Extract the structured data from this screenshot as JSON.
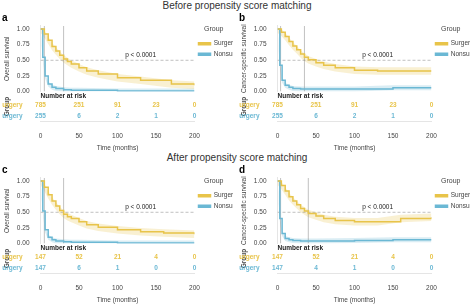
{
  "chart_data": [
    {
      "type": "step",
      "heading": "Before propensity score matching",
      "title": "a",
      "y_label": "Overall survival",
      "x_label": "Time (months)",
      "xlim": [
        0,
        200
      ],
      "xticks": [
        0,
        50,
        100,
        150,
        200
      ],
      "ylim": [
        0,
        1.05
      ],
      "yticks": [
        {
          "value": 0,
          "label": "0.00"
        },
        0.25,
        {
          "value": 0.5,
          "label": "0.50"
        },
        0.75,
        {
          "value": 1,
          "label": "1.00"
        }
      ],
      "grid": false,
      "legend": "upper right",
      "legend_title": "Group",
      "series": [
        {
          "name": "Surgery",
          "color": "#E8C44A",
          "x": [
            0,
            5,
            10,
            15,
            20,
            25,
            30,
            35,
            40,
            50,
            60,
            75,
            100,
            130,
            170,
            200
          ],
          "values": [
            1.0,
            0.92,
            0.82,
            0.72,
            0.65,
            0.58,
            0.52,
            0.48,
            0.44,
            0.38,
            0.33,
            0.28,
            0.22,
            0.18,
            0.12,
            0.1
          ],
          "lower": [
            0.94,
            0.86,
            0.76,
            0.66,
            0.59,
            0.52,
            0.46,
            0.42,
            0.38,
            0.32,
            0.27,
            0.22,
            0.16,
            0.12,
            0.06,
            0.04
          ],
          "upper": [
            1.0,
            0.98,
            0.88,
            0.78,
            0.71,
            0.64,
            0.58,
            0.54,
            0.5,
            0.44,
            0.39,
            0.34,
            0.28,
            0.24,
            0.18,
            0.16
          ]
        },
        {
          "name": "Nonsurgery",
          "color": "#6BB8D4",
          "x": [
            0,
            3,
            6,
            10,
            15,
            20,
            30,
            40,
            50,
            100,
            150,
            200
          ],
          "values": [
            1.0,
            0.55,
            0.25,
            0.12,
            0.07,
            0.05,
            0.03,
            0.02,
            0.02,
            0.01,
            0.01,
            0.01
          ],
          "lower": [
            0.96,
            0.51,
            0.21,
            0.08,
            0.03,
            0.01,
            0,
            0,
            0,
            0,
            0,
            0
          ],
          "upper": [
            1.0,
            0.59,
            0.29,
            0.16,
            0.11,
            0.09,
            0.07,
            0.06,
            0.06,
            0.05,
            0.05,
            0.05
          ]
        }
      ],
      "hlines": [
        0.5
      ],
      "vlines": [
        30,
        5
      ],
      "annotations": [
        "p < 0.0001"
      ],
      "risk_table": {
        "title": "Number at risk",
        "label": "Group",
        "x": [
          0,
          50,
          100,
          150,
          200
        ],
        "rows": [
          {
            "name": "Surgery",
            "values": [
              785,
              251,
              91,
              23,
              0
            ]
          },
          {
            "name": "Nonsurgery",
            "values": [
              255,
              6,
              2,
              1,
              0
            ]
          }
        ]
      }
    },
    {
      "type": "step",
      "title": "b",
      "y_label": "Cancer-specific survival",
      "x_label": "Time (months)",
      "xlim": [
        0,
        200
      ],
      "xticks": [
        0,
        50,
        100,
        150,
        200
      ],
      "ylim": [
        0,
        1.05
      ],
      "yticks": [
        {
          "value": 0,
          "label": "0.00"
        },
        0.25,
        {
          "value": 0.5,
          "label": "0.50"
        },
        0.75,
        {
          "value": 1,
          "label": "1.00"
        }
      ],
      "grid": false,
      "legend": "upper right",
      "legend_title": "Group",
      "series": [
        {
          "name": "Surgery",
          "color": "#E8C44A",
          "x": [
            0,
            5,
            10,
            15,
            20,
            25,
            30,
            35,
            40,
            50,
            60,
            75,
            100,
            130,
            160,
            200
          ],
          "values": [
            1.0,
            0.95,
            0.88,
            0.8,
            0.73,
            0.67,
            0.6,
            0.55,
            0.51,
            0.46,
            0.42,
            0.38,
            0.34,
            0.33,
            0.33,
            0.33
          ],
          "lower": [
            0.94,
            0.89,
            0.82,
            0.74,
            0.67,
            0.61,
            0.54,
            0.49,
            0.45,
            0.4,
            0.36,
            0.32,
            0.28,
            0.27,
            0.27,
            0.27
          ],
          "upper": [
            1.0,
            1.0,
            0.94,
            0.86,
            0.79,
            0.73,
            0.66,
            0.61,
            0.57,
            0.52,
            0.48,
            0.44,
            0.4,
            0.39,
            0.39,
            0.39
          ]
        },
        {
          "name": "Nonsurgery",
          "color": "#6BB8D4",
          "x": [
            0,
            3,
            6,
            10,
            15,
            20,
            30,
            40,
            50,
            100,
            150,
            200
          ],
          "values": [
            1.0,
            0.42,
            0.18,
            0.1,
            0.07,
            0.05,
            0.04,
            0.04,
            0.04,
            0.04,
            0.06,
            0.06
          ],
          "lower": [
            0.96,
            0.38,
            0.14,
            0.06,
            0.03,
            0.01,
            0,
            0,
            0,
            0,
            0.02,
            0.02
          ],
          "upper": [
            1.0,
            0.46,
            0.22,
            0.14,
            0.11,
            0.09,
            0.08,
            0.08,
            0.08,
            0.08,
            0.1,
            0.1
          ]
        }
      ],
      "hlines": [
        0.5
      ],
      "vlines": [
        35,
        4
      ],
      "annotations": [
        "p < 0.0001"
      ],
      "risk_table": {
        "title": "Number at risk",
        "label": "Group",
        "x": [
          0,
          50,
          100,
          150,
          200
        ],
        "rows": [
          {
            "name": "Surgery",
            "values": [
              785,
              251,
              91,
              23,
              0
            ]
          },
          {
            "name": "Nonsurgery",
            "values": [
              255,
              6,
              2,
              1,
              0
            ]
          }
        ]
      }
    },
    {
      "type": "step",
      "heading": "After propensity score matching",
      "title": "c",
      "y_label": "Overall survival",
      "x_label": "Time (months)",
      "xlim": [
        0,
        200
      ],
      "xticks": [
        0,
        50,
        100,
        150,
        200
      ],
      "ylim": [
        0,
        1.05
      ],
      "yticks": [
        {
          "value": 0,
          "label": "0.00"
        },
        0.25,
        {
          "value": 0.5,
          "label": "0.50"
        },
        0.75,
        {
          "value": 1,
          "label": "1.00"
        }
      ],
      "grid": false,
      "legend": "upper right",
      "legend_title": "Group",
      "series": [
        {
          "name": "Surgery",
          "color": "#E8C44A",
          "x": [
            0,
            5,
            10,
            15,
            20,
            25,
            30,
            35,
            40,
            50,
            60,
            75,
            100,
            130,
            160,
            200
          ],
          "values": [
            1.0,
            0.9,
            0.78,
            0.68,
            0.6,
            0.53,
            0.47,
            0.43,
            0.4,
            0.35,
            0.3,
            0.26,
            0.22,
            0.19,
            0.17,
            0.15
          ],
          "lower": [
            0.94,
            0.84,
            0.72,
            0.62,
            0.54,
            0.47,
            0.41,
            0.37,
            0.34,
            0.29,
            0.24,
            0.2,
            0.16,
            0.13,
            0.11,
            0.09
          ],
          "upper": [
            1.0,
            0.96,
            0.84,
            0.74,
            0.66,
            0.59,
            0.53,
            0.49,
            0.46,
            0.41,
            0.36,
            0.32,
            0.28,
            0.25,
            0.23,
            0.21
          ]
        },
        {
          "name": "Nonsurgery",
          "color": "#6BB8D4",
          "x": [
            0,
            3,
            6,
            10,
            15,
            20,
            30,
            40,
            50,
            100,
            150,
            200
          ],
          "values": [
            1.0,
            0.52,
            0.22,
            0.1,
            0.06,
            0.04,
            0.03,
            0.02,
            0.02,
            0.01,
            0.01,
            0.01
          ],
          "lower": [
            0.96,
            0.48,
            0.18,
            0.06,
            0.02,
            0,
            0,
            0,
            0,
            0,
            0,
            0
          ],
          "upper": [
            1.0,
            0.56,
            0.26,
            0.14,
            0.1,
            0.08,
            0.07,
            0.06,
            0.06,
            0.05,
            0.05,
            0.05
          ]
        }
      ],
      "hlines": [
        0.5
      ],
      "vlines": [
        30,
        5
      ],
      "annotations": [
        "p < 0.0001"
      ],
      "risk_table": {
        "title": "Number at risk",
        "label": "Group",
        "x": [
          0,
          50,
          100,
          150,
          200
        ],
        "rows": [
          {
            "name": "Surgery",
            "values": [
              147,
              52,
              21,
              4,
              0
            ]
          },
          {
            "name": "Nonsurgery",
            "values": [
              147,
              6,
              1,
              0,
              0
            ]
          }
        ]
      }
    },
    {
      "type": "step",
      "title": "d",
      "y_label": "Cancer-specific survival",
      "x_label": "Time (months)",
      "xlim": [
        0,
        200
      ],
      "xticks": [
        0,
        50,
        100,
        150,
        200
      ],
      "ylim": [
        0,
        1.05
      ],
      "yticks": [
        {
          "value": 0,
          "label": "0.00"
        },
        0.25,
        {
          "value": 0.5,
          "label": "0.50"
        },
        0.75,
        {
          "value": 1,
          "label": "1.00"
        }
      ],
      "grid": false,
      "legend": "upper right",
      "legend_title": "Group",
      "series": [
        {
          "name": "Surgery",
          "color": "#E8C44A",
          "x": [
            0,
            5,
            10,
            15,
            20,
            25,
            30,
            35,
            40,
            50,
            60,
            75,
            100,
            130,
            160,
            200
          ],
          "values": [
            1.0,
            0.93,
            0.84,
            0.75,
            0.68,
            0.62,
            0.56,
            0.52,
            0.48,
            0.44,
            0.4,
            0.37,
            0.35,
            0.35,
            0.4,
            0.42
          ],
          "lower": [
            0.94,
            0.87,
            0.78,
            0.69,
            0.62,
            0.56,
            0.5,
            0.46,
            0.42,
            0.38,
            0.34,
            0.31,
            0.29,
            0.29,
            0.34,
            0.36
          ],
          "upper": [
            1.0,
            0.99,
            0.9,
            0.81,
            0.74,
            0.68,
            0.62,
            0.58,
            0.54,
            0.5,
            0.46,
            0.43,
            0.41,
            0.41,
            0.46,
            0.48
          ]
        },
        {
          "name": "Nonsurgery",
          "color": "#6BB8D4",
          "x": [
            0,
            3,
            6,
            10,
            15,
            20,
            30,
            40,
            50,
            100,
            150,
            200
          ],
          "values": [
            1.0,
            0.4,
            0.16,
            0.08,
            0.06,
            0.05,
            0.04,
            0.04,
            0.04,
            0.05,
            0.06,
            0.06
          ],
          "lower": [
            0.96,
            0.36,
            0.12,
            0.04,
            0.02,
            0.01,
            0,
            0,
            0,
            0.01,
            0.02,
            0.02
          ],
          "upper": [
            1.0,
            0.44,
            0.2,
            0.12,
            0.1,
            0.09,
            0.08,
            0.08,
            0.08,
            0.09,
            0.1,
            0.1
          ]
        }
      ],
      "hlines": [
        0.5
      ],
      "vlines": [
        40,
        4
      ],
      "annotations": [
        "p < 0.0001"
      ],
      "risk_table": {
        "title": "Number at risk",
        "label": "Group",
        "x": [
          0,
          50,
          100,
          150,
          200
        ],
        "rows": [
          {
            "name": "Surgery",
            "values": [
              147,
              52,
              21,
              4,
              0
            ]
          },
          {
            "name": "Nonsurgery",
            "values": [
              147,
              4,
              1,
              0,
              0
            ]
          }
        ]
      }
    }
  ]
}
